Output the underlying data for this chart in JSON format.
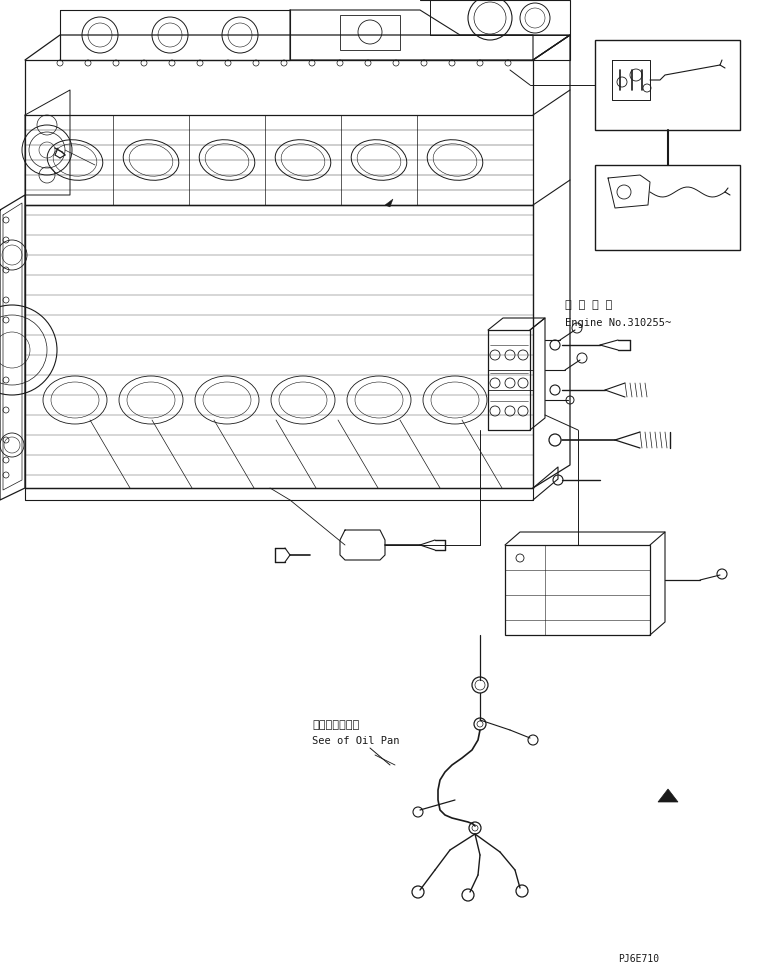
{
  "bg_color": "#ffffff",
  "line_color": "#1a1a1a",
  "fig_width": 7.65,
  "fig_height": 9.67,
  "dpi": 100,
  "annotation_japanese_1": "適 用 号 機",
  "annotation_english_1": "Engine No.310255~",
  "annotation_japanese_2": "オイルパン参照",
  "annotation_english_2": "See of Oil Pan",
  "part_code": "PJ6E710",
  "font_size_annotations": 7.5,
  "font_size_code": 7
}
